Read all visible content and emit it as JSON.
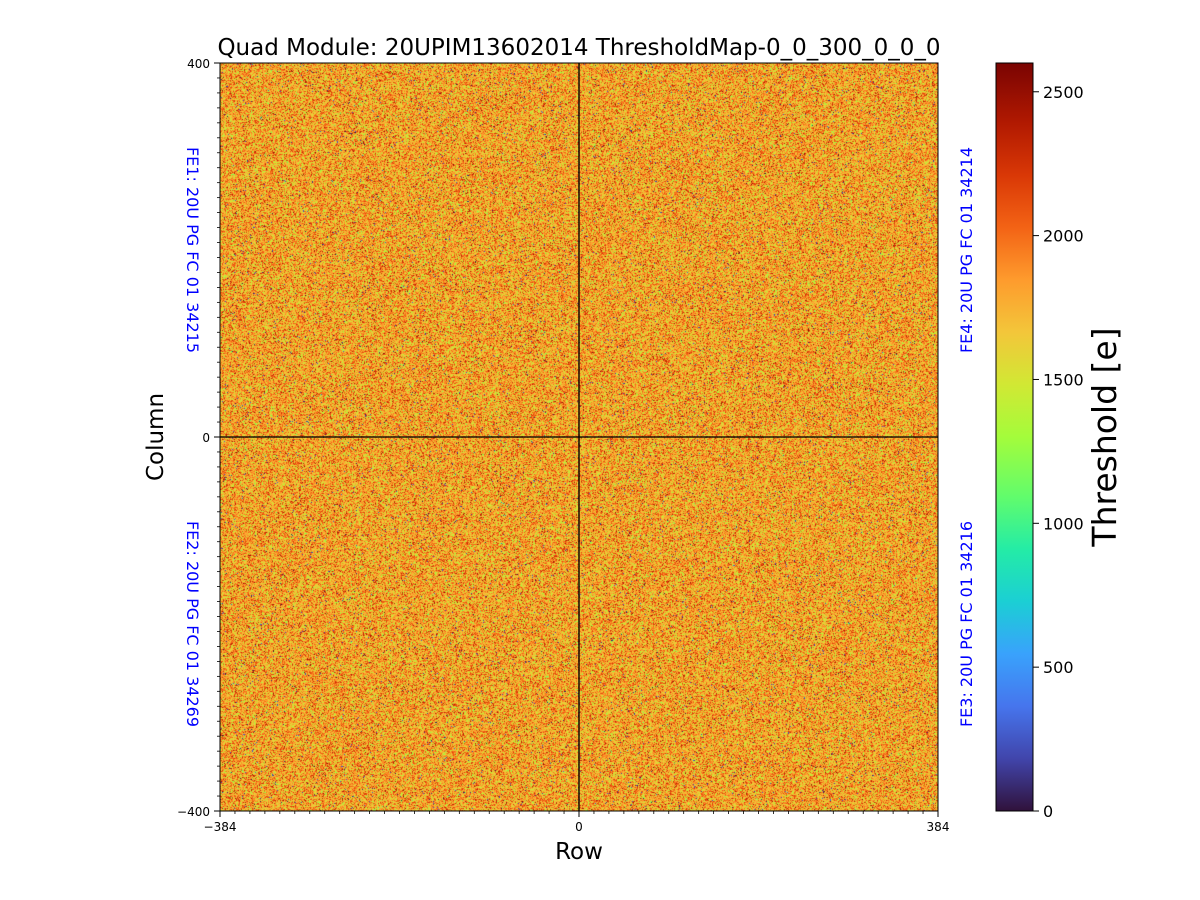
{
  "chart_data": {
    "type": "heatmap",
    "title": "Quad Module: 20UPIM13602014 ThresholdMap-0_0_300_0_0_0",
    "xlabel": "Row",
    "ylabel": "Column",
    "xlim": [
      -384,
      384
    ],
    "ylim": [
      -400,
      400
    ],
    "x_ticks": [
      -384,
      0,
      384
    ],
    "y_ticks": [
      -400,
      0,
      400
    ],
    "x_tick_labels": [
      "−384",
      "0",
      "384"
    ],
    "y_tick_labels": [
      "−400",
      "0",
      "400"
    ],
    "colormap": "turbo",
    "colorbar": {
      "label": "Threshold [e]",
      "range": [
        0,
        2600
      ],
      "ticks": [
        0,
        500,
        1000,
        1500,
        2000,
        2500
      ],
      "tick_labels": [
        "0",
        "500",
        "1000",
        "1500",
        "2000",
        "2500"
      ]
    },
    "typical_value_range": [
      1300,
      2300
    ],
    "chip_labels": [
      {
        "id": "FE1",
        "text": "FE1: 20U PG FC 01 34215",
        "side": "left",
        "quadrant": "top-left"
      },
      {
        "id": "FE2",
        "text": "FE2: 20U PG FC 01 34269",
        "side": "left",
        "quadrant": "bottom-left"
      },
      {
        "id": "FE3",
        "text": "FE3: 20U PG FC 01 34216",
        "side": "right",
        "quadrant": "bottom-right"
      },
      {
        "id": "FE4",
        "text": "FE4: 20U PG FC 01 34214",
        "side": "right",
        "quadrant": "top-right"
      }
    ],
    "chip_label_color": "#0000ff"
  }
}
